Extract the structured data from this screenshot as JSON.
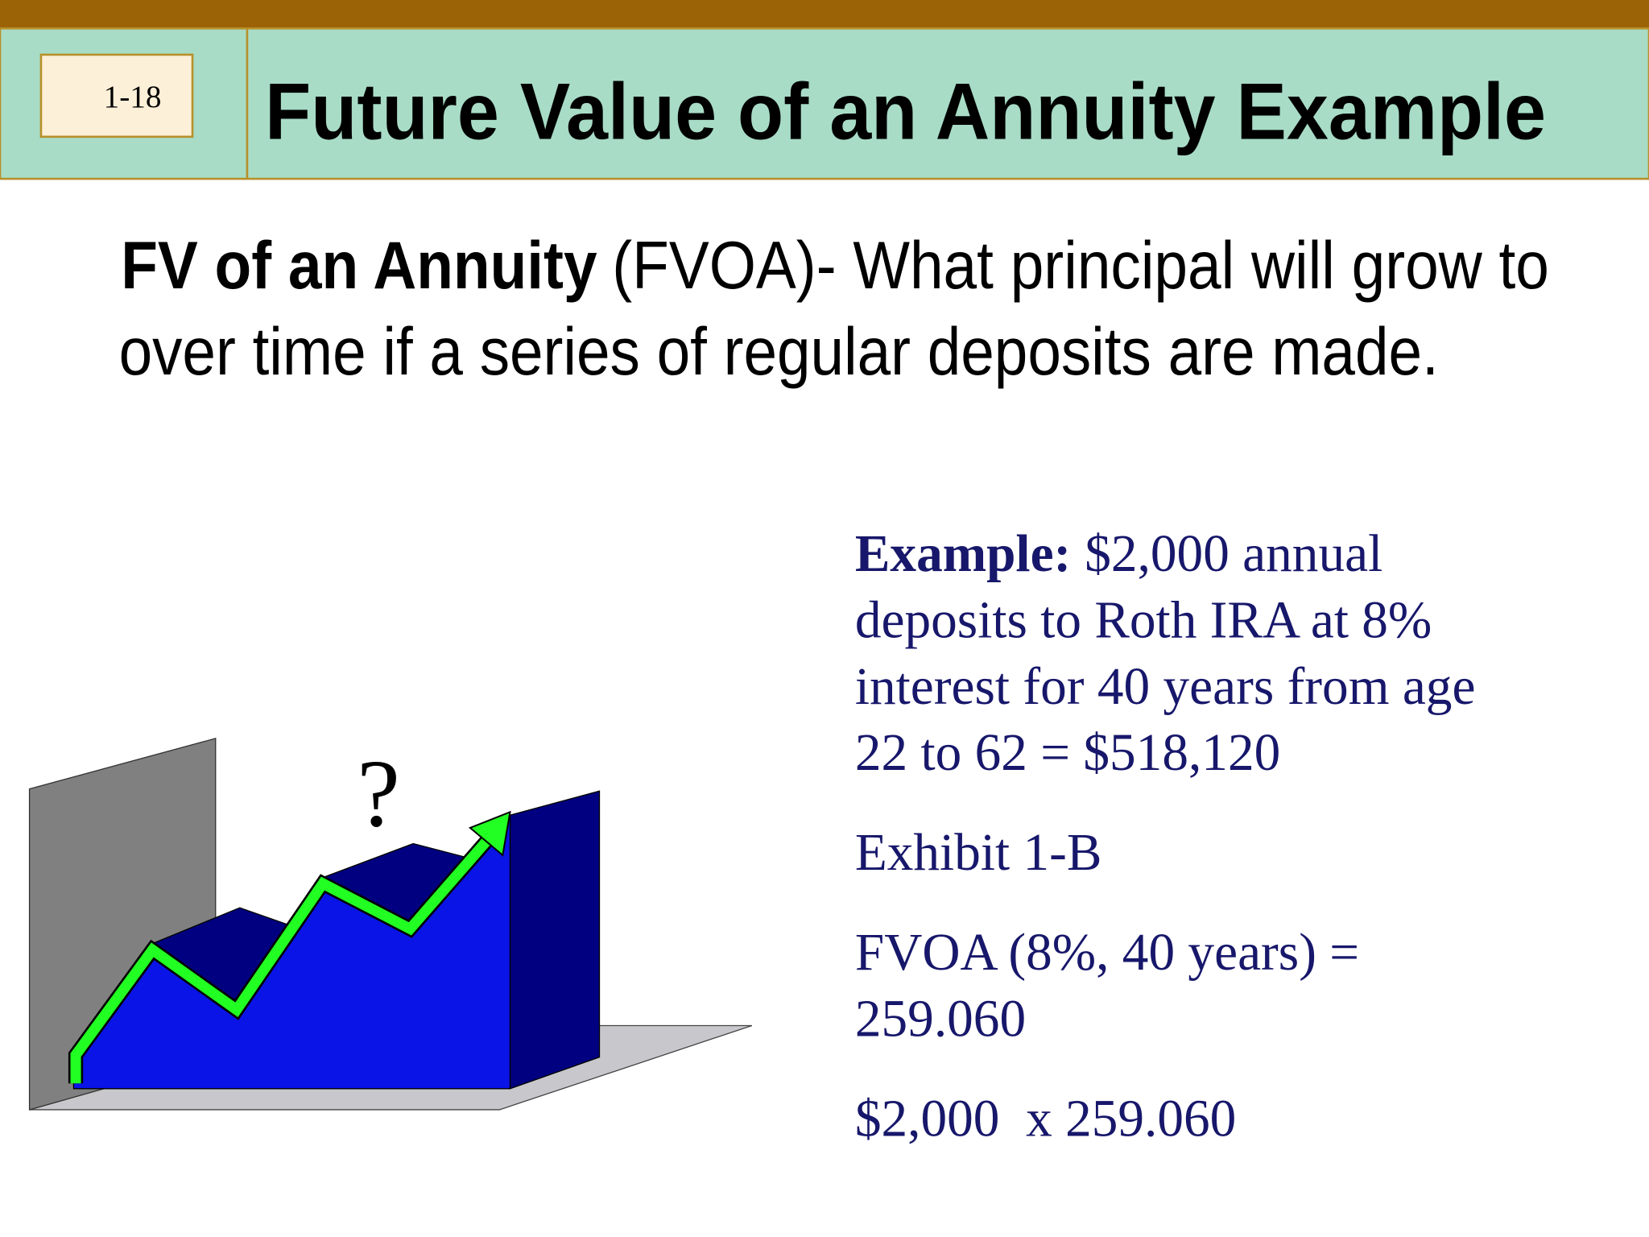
{
  "header": {
    "slide_number": "1-18",
    "title": "Future Value of an Annuity Example"
  },
  "definition": {
    "term": "FV of an Annuity",
    "lines": [
      "(FVOA)- What principal will grow to",
      "over time if a series of regular deposits are made."
    ]
  },
  "illustration": {
    "label": "?"
  },
  "example": {
    "label": "Example:",
    "lines": [
      "$2,000 annual",
      "deposits to Roth IRA at 8%",
      "interest for 40 years from age",
      "22 to 62 = $518,120"
    ],
    "exhibit": "Exhibit 1-B",
    "factor_lines": [
      "FVOA (8%, 40 years) =",
      "259.060"
    ],
    "calculation": "$2,000  x 259.060"
  }
}
